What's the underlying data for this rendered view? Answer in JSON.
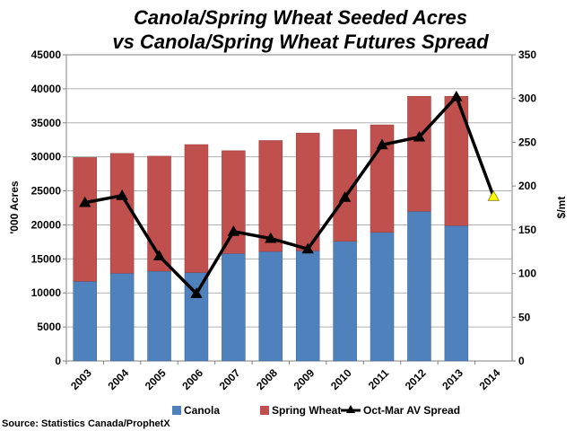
{
  "chart_data": {
    "type": "bar",
    "title": [
      "Canola/Spring Wheat Seeded Acres",
      "vs Canola/Spring Wheat Futures Spread"
    ],
    "ylabel_left": "'000 Acres",
    "ylabel_right": "$/mt",
    "ylim_left": [
      0,
      45000
    ],
    "yticks_left": [
      0,
      5000,
      10000,
      15000,
      20000,
      25000,
      30000,
      35000,
      40000,
      45000
    ],
    "ylim_right": [
      0,
      350
    ],
    "yticks_right": [
      0,
      50,
      100,
      150,
      200,
      250,
      300,
      350
    ],
    "categories": [
      "2003",
      "2004",
      "2005",
      "2006",
      "2007",
      "2008",
      "2009",
      "2010",
      "2011",
      "2012",
      "2013",
      "2014"
    ],
    "stacked": true,
    "series": [
      {
        "name": "Canola",
        "type": "bar",
        "color": "#4F81BD",
        "values": [
          11700,
          12900,
          13200,
          13000,
          15800,
          16100,
          16200,
          17600,
          18900,
          22000,
          19900,
          null
        ]
      },
      {
        "name": "Spring Wheat",
        "type": "bar",
        "color": "#C0504D",
        "values": [
          18200,
          17600,
          16900,
          18800,
          15100,
          16300,
          17300,
          16400,
          15800,
          16900,
          19000,
          null
        ]
      },
      {
        "name": "Oct-Mar AV Spread",
        "type": "line",
        "axis": "right",
        "color": "#000000",
        "values": [
          181,
          189,
          120,
          77,
          148,
          140,
          128,
          187,
          247,
          256,
          302,
          188
        ]
      }
    ],
    "highlight": {
      "category": "2014",
      "value": 188,
      "color": "#FFFF00"
    },
    "grid": true,
    "legend": "bottom"
  },
  "source": "Source: Statistics Canada/ProphetX"
}
